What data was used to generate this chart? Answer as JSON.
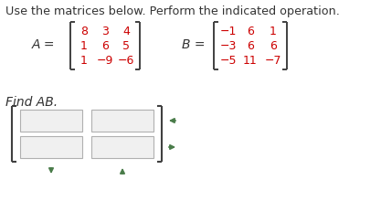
{
  "title": "Use the matrices below. Perform the indicated operation.",
  "find_text": "Find AB.",
  "matrix_A": [
    [
      "8",
      "3",
      "4"
    ],
    [
      "1",
      "6",
      "5"
    ],
    [
      "1",
      "−9",
      "−6"
    ]
  ],
  "matrix_B": [
    [
      "−1",
      "6",
      "1"
    ],
    [
      "−3",
      "6",
      "6"
    ],
    [
      "−5",
      "11",
      "−7"
    ]
  ],
  "matrix_color": "#cc0000",
  "bracket_color": "#404040",
  "text_color": "#333333",
  "answer_box_color": "#b0b0b0",
  "answer_box_fill": "#f0f0f0",
  "arrow_color": "#4a7c4a",
  "bg_color": "#ffffff",
  "title_fontsize": 9.2,
  "matrix_fontsize": 9.0,
  "label_fontsize": 10.0,
  "find_fontsize": 10.0
}
